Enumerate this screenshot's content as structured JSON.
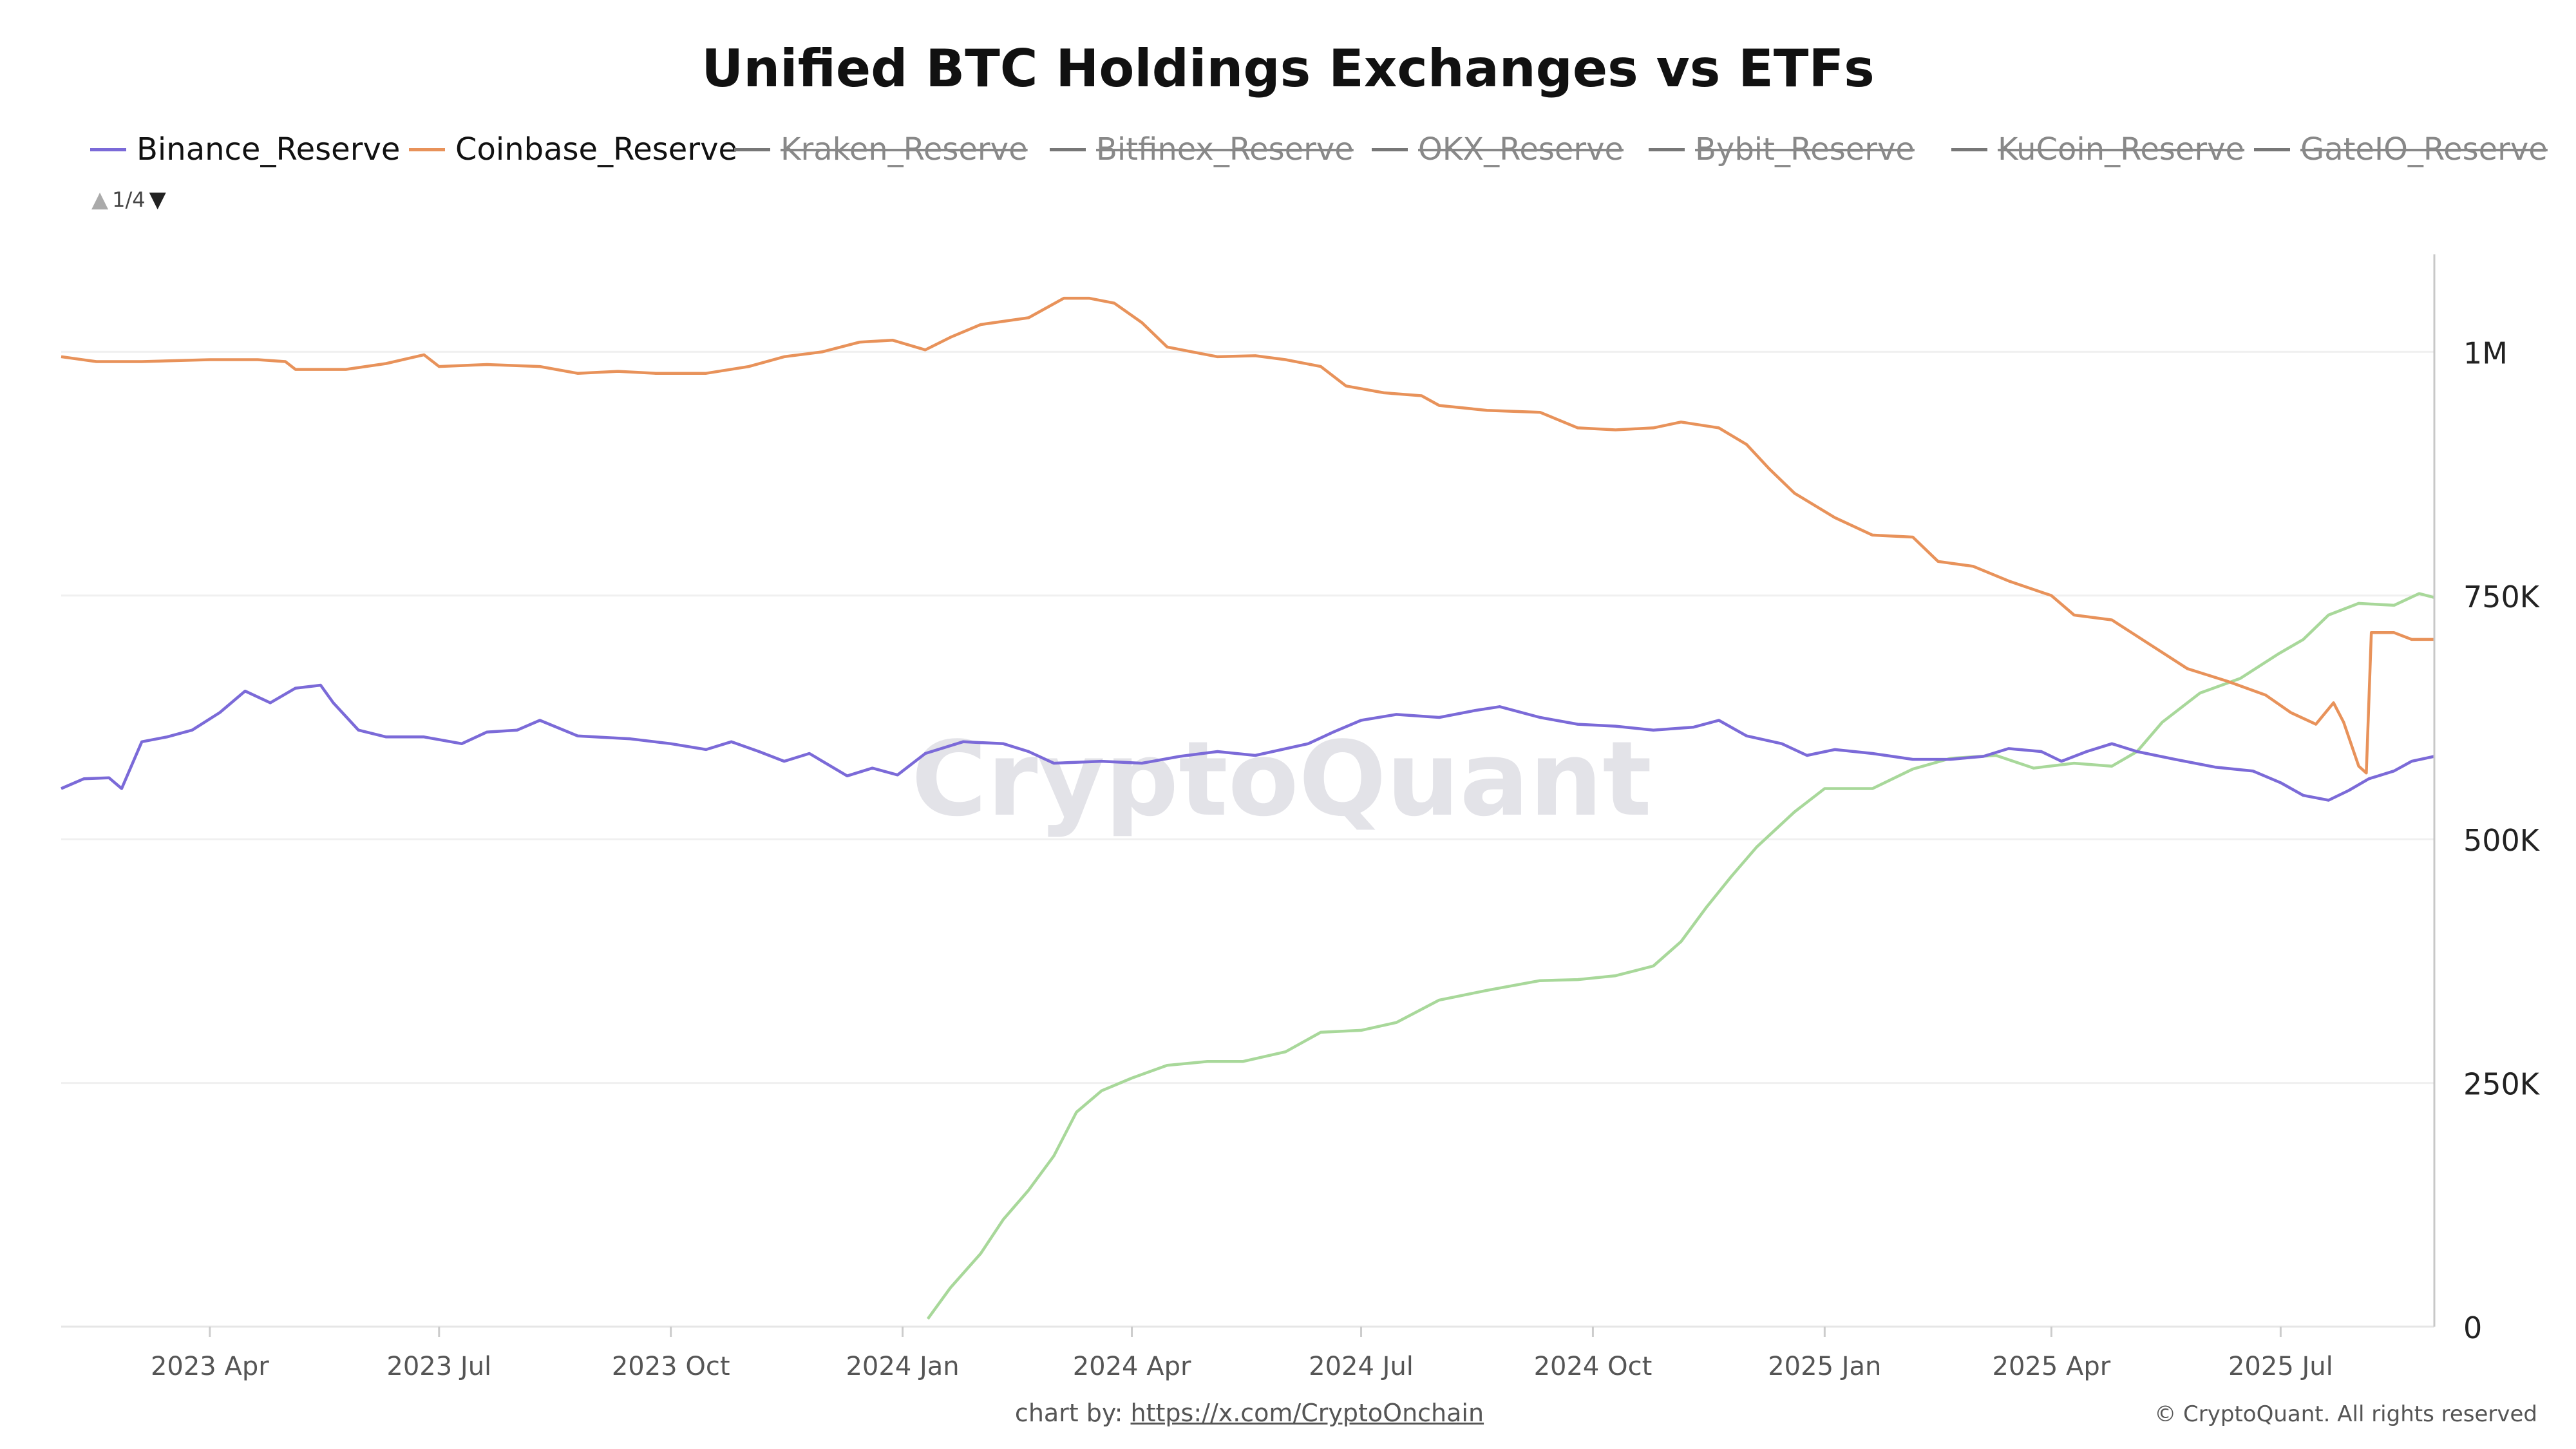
{
  "chart_data": {
    "type": "line",
    "title": "Unified BTC Holdings Exchanges vs ETFs",
    "legend": {
      "placement": "top-left",
      "page_indicator": "1/4",
      "entries": [
        {
          "name": "Binance_Reserve",
          "color": "#7b6ad8",
          "visible": true
        },
        {
          "name": "Coinbase_Reserve",
          "color": "#e8925a",
          "visible": true
        },
        {
          "name": "Kraken_Reserve",
          "color": "#777777",
          "visible": false
        },
        {
          "name": "Bitfinex_Reserve",
          "color": "#777777",
          "visible": false
        },
        {
          "name": "OKX_Reserve",
          "color": "#777777",
          "visible": false
        },
        {
          "name": "Bybit_Reserve",
          "color": "#777777",
          "visible": false
        },
        {
          "name": "KuCoin_Reserve",
          "color": "#777777",
          "visible": false
        },
        {
          "name": "GateIO_Reserve",
          "color": "#777777",
          "visible": false
        }
      ]
    },
    "x_range": [
      "2023-02-01",
      "2025-08-31"
    ],
    "x_tick_labels": [
      "2023 Apr",
      "2023 Jul",
      "2023 Oct",
      "2024 Jan",
      "2024 Apr",
      "2024 Jul",
      "2024 Oct",
      "2025 Jan",
      "2025 Apr",
      "2025 Jul"
    ],
    "x_tick_dates": [
      "2023-04-01",
      "2023-07-01",
      "2023-10-01",
      "2024-01-01",
      "2024-04-01",
      "2024-07-01",
      "2024-10-01",
      "2025-01-01",
      "2025-04-01",
      "2025-07-01"
    ],
    "y_axis": {
      "position": "right",
      "range": [
        0,
        1100000
      ],
      "ticks": [
        0,
        250000,
        500000,
        750000,
        1000000
      ],
      "tick_labels": [
        "0",
        "250K",
        "500K",
        "750K",
        "1M"
      ],
      "grid": true
    },
    "series": [
      {
        "name": "Binance_Reserve",
        "color": "#7b6ad8",
        "points": [
          [
            "2023-02-01",
            552000
          ],
          [
            "2023-02-10",
            562000
          ],
          [
            "2023-02-20",
            563000
          ],
          [
            "2023-02-25",
            552000
          ],
          [
            "2023-03-05",
            600000
          ],
          [
            "2023-03-15",
            605000
          ],
          [
            "2023-03-25",
            612000
          ],
          [
            "2023-04-05",
            630000
          ],
          [
            "2023-04-15",
            652000
          ],
          [
            "2023-04-25",
            640000
          ],
          [
            "2023-05-05",
            655000
          ],
          [
            "2023-05-15",
            658000
          ],
          [
            "2023-05-20",
            640000
          ],
          [
            "2023-05-30",
            612000
          ],
          [
            "2023-06-10",
            605000
          ],
          [
            "2023-06-25",
            605000
          ],
          [
            "2023-07-10",
            598000
          ],
          [
            "2023-07-20",
            610000
          ],
          [
            "2023-08-01",
            612000
          ],
          [
            "2023-08-10",
            622000
          ],
          [
            "2023-08-25",
            606000
          ],
          [
            "2023-09-15",
            603000
          ],
          [
            "2023-10-01",
            598000
          ],
          [
            "2023-10-15",
            592000
          ],
          [
            "2023-10-25",
            600000
          ],
          [
            "2023-11-05",
            590000
          ],
          [
            "2023-11-15",
            580000
          ],
          [
            "2023-11-25",
            588000
          ],
          [
            "2023-12-10",
            565000
          ],
          [
            "2023-12-20",
            573000
          ],
          [
            "2023-12-30",
            566000
          ],
          [
            "2024-01-10",
            588000
          ],
          [
            "2024-01-25",
            600000
          ],
          [
            "2024-02-10",
            598000
          ],
          [
            "2024-02-20",
            590000
          ],
          [
            "2024-03-01",
            578000
          ],
          [
            "2024-03-20",
            580000
          ],
          [
            "2024-04-05",
            578000
          ],
          [
            "2024-04-20",
            585000
          ],
          [
            "2024-05-05",
            590000
          ],
          [
            "2024-05-20",
            586000
          ],
          [
            "2024-06-10",
            598000
          ],
          [
            "2024-06-20",
            610000
          ],
          [
            "2024-07-01",
            622000
          ],
          [
            "2024-07-15",
            628000
          ],
          [
            "2024-08-01",
            625000
          ],
          [
            "2024-08-15",
            632000
          ],
          [
            "2024-08-25",
            636000
          ],
          [
            "2024-09-10",
            625000
          ],
          [
            "2024-09-25",
            618000
          ],
          [
            "2024-10-10",
            616000
          ],
          [
            "2024-10-25",
            612000
          ],
          [
            "2024-11-10",
            615000
          ],
          [
            "2024-11-20",
            622000
          ],
          [
            "2024-12-01",
            606000
          ],
          [
            "2024-12-15",
            598000
          ],
          [
            "2024-12-25",
            586000
          ],
          [
            "2025-01-05",
            592000
          ],
          [
            "2025-01-20",
            588000
          ],
          [
            "2025-02-05",
            582000
          ],
          [
            "2025-02-20",
            582000
          ],
          [
            "2025-03-05",
            585000
          ],
          [
            "2025-03-15",
            593000
          ],
          [
            "2025-03-28",
            590000
          ],
          [
            "2025-04-05",
            580000
          ],
          [
            "2025-04-15",
            590000
          ],
          [
            "2025-04-25",
            598000
          ],
          [
            "2025-05-05",
            590000
          ],
          [
            "2025-05-20",
            582000
          ],
          [
            "2025-06-05",
            574000
          ],
          [
            "2025-06-20",
            570000
          ],
          [
            "2025-07-01",
            558000
          ],
          [
            "2025-07-10",
            545000
          ],
          [
            "2025-07-20",
            540000
          ],
          [
            "2025-07-28",
            550000
          ],
          [
            "2025-08-05",
            562000
          ],
          [
            "2025-08-15",
            570000
          ],
          [
            "2025-08-22",
            580000
          ],
          [
            "2025-08-31",
            585000
          ]
        ]
      },
      {
        "name": "Coinbase_Reserve",
        "color": "#e8925a",
        "points": [
          [
            "2023-02-01",
            995000
          ],
          [
            "2023-02-15",
            990000
          ],
          [
            "2023-03-05",
            990000
          ],
          [
            "2023-04-01",
            992000
          ],
          [
            "2023-04-20",
            992000
          ],
          [
            "2023-05-01",
            990000
          ],
          [
            "2023-05-05",
            982000
          ],
          [
            "2023-05-25",
            982000
          ],
          [
            "2023-06-10",
            988000
          ],
          [
            "2023-06-25",
            997000
          ],
          [
            "2023-07-01",
            985000
          ],
          [
            "2023-07-20",
            987000
          ],
          [
            "2023-08-10",
            985000
          ],
          [
            "2023-08-25",
            978000
          ],
          [
            "2023-09-10",
            980000
          ],
          [
            "2023-09-25",
            978000
          ],
          [
            "2023-10-15",
            978000
          ],
          [
            "2023-11-01",
            985000
          ],
          [
            "2023-11-15",
            995000
          ],
          [
            "2023-11-30",
            1000000
          ],
          [
            "2023-12-15",
            1010000
          ],
          [
            "2023-12-28",
            1012000
          ],
          [
            "2024-01-10",
            1002000
          ],
          [
            "2024-01-20",
            1015000
          ],
          [
            "2024-02-01",
            1028000
          ],
          [
            "2024-02-20",
            1035000
          ],
          [
            "2024-03-05",
            1055000
          ],
          [
            "2024-03-15",
            1055000
          ],
          [
            "2024-03-25",
            1050000
          ],
          [
            "2024-04-05",
            1030000
          ],
          [
            "2024-04-15",
            1005000
          ],
          [
            "2024-04-25",
            1000000
          ],
          [
            "2024-05-05",
            995000
          ],
          [
            "2024-05-20",
            996000
          ],
          [
            "2024-06-01",
            992000
          ],
          [
            "2024-06-15",
            985000
          ],
          [
            "2024-06-25",
            965000
          ],
          [
            "2024-07-10",
            958000
          ],
          [
            "2024-07-25",
            955000
          ],
          [
            "2024-08-01",
            945000
          ],
          [
            "2024-08-20",
            940000
          ],
          [
            "2024-09-10",
            938000
          ],
          [
            "2024-09-25",
            922000
          ],
          [
            "2024-10-10",
            920000
          ],
          [
            "2024-10-25",
            922000
          ],
          [
            "2024-11-05",
            928000
          ],
          [
            "2024-11-20",
            922000
          ],
          [
            "2024-12-01",
            905000
          ],
          [
            "2024-12-10",
            880000
          ],
          [
            "2024-12-20",
            855000
          ],
          [
            "2025-01-05",
            830000
          ],
          [
            "2025-01-20",
            812000
          ],
          [
            "2025-02-05",
            810000
          ],
          [
            "2025-02-15",
            785000
          ],
          [
            "2025-03-01",
            780000
          ],
          [
            "2025-03-15",
            765000
          ],
          [
            "2025-04-01",
            750000
          ],
          [
            "2025-04-10",
            730000
          ],
          [
            "2025-04-25",
            725000
          ],
          [
            "2025-05-10",
            700000
          ],
          [
            "2025-05-25",
            675000
          ],
          [
            "2025-06-10",
            662000
          ],
          [
            "2025-06-25",
            648000
          ],
          [
            "2025-07-05",
            630000
          ],
          [
            "2025-07-15",
            618000
          ],
          [
            "2025-07-22",
            640000
          ],
          [
            "2025-07-26",
            620000
          ],
          [
            "2025-08-01",
            575000
          ],
          [
            "2025-08-04",
            568000
          ],
          [
            "2025-08-06",
            712000
          ],
          [
            "2025-08-15",
            712000
          ],
          [
            "2025-08-22",
            705000
          ],
          [
            "2025-08-31",
            705000
          ]
        ]
      },
      {
        "name": "",
        "color": "#a8d89a",
        "points": [
          [
            "2024-01-11",
            8000
          ],
          [
            "2024-01-20",
            40000
          ],
          [
            "2024-02-01",
            75000
          ],
          [
            "2024-02-10",
            110000
          ],
          [
            "2024-02-20",
            140000
          ],
          [
            "2024-03-01",
            175000
          ],
          [
            "2024-03-10",
            220000
          ],
          [
            "2024-03-20",
            242000
          ],
          [
            "2024-04-01",
            255000
          ],
          [
            "2024-04-15",
            268000
          ],
          [
            "2024-05-01",
            272000
          ],
          [
            "2024-05-15",
            272000
          ],
          [
            "2024-06-01",
            282000
          ],
          [
            "2024-06-15",
            302000
          ],
          [
            "2024-07-01",
            304000
          ],
          [
            "2024-07-15",
            312000
          ],
          [
            "2024-08-01",
            335000
          ],
          [
            "2024-08-20",
            345000
          ],
          [
            "2024-09-10",
            355000
          ],
          [
            "2024-09-25",
            356000
          ],
          [
            "2024-10-10",
            360000
          ],
          [
            "2024-10-25",
            370000
          ],
          [
            "2024-11-05",
            395000
          ],
          [
            "2024-11-15",
            430000
          ],
          [
            "2024-11-25",
            462000
          ],
          [
            "2024-12-05",
            492000
          ],
          [
            "2024-12-20",
            528000
          ],
          [
            "2025-01-01",
            552000
          ],
          [
            "2025-01-20",
            552000
          ],
          [
            "2025-02-05",
            572000
          ],
          [
            "2025-02-20",
            583000
          ],
          [
            "2025-03-10",
            586000
          ],
          [
            "2025-03-25",
            573000
          ],
          [
            "2025-04-10",
            578000
          ],
          [
            "2025-04-25",
            575000
          ],
          [
            "2025-05-05",
            590000
          ],
          [
            "2025-05-15",
            620000
          ],
          [
            "2025-05-30",
            650000
          ],
          [
            "2025-06-15",
            665000
          ],
          [
            "2025-06-30",
            690000
          ],
          [
            "2025-07-10",
            705000
          ],
          [
            "2025-07-20",
            730000
          ],
          [
            "2025-08-01",
            742000
          ],
          [
            "2025-08-15",
            740000
          ],
          [
            "2025-08-25",
            752000
          ],
          [
            "2025-08-31",
            748000
          ]
        ]
      }
    ],
    "watermark": "CryptoQuant"
  },
  "footer": {
    "credit_prefix": "chart by: ",
    "credit_link": "https://x.com/CryptoOnchain",
    "copyright": "© CryptoQuant. All rights reserved"
  }
}
